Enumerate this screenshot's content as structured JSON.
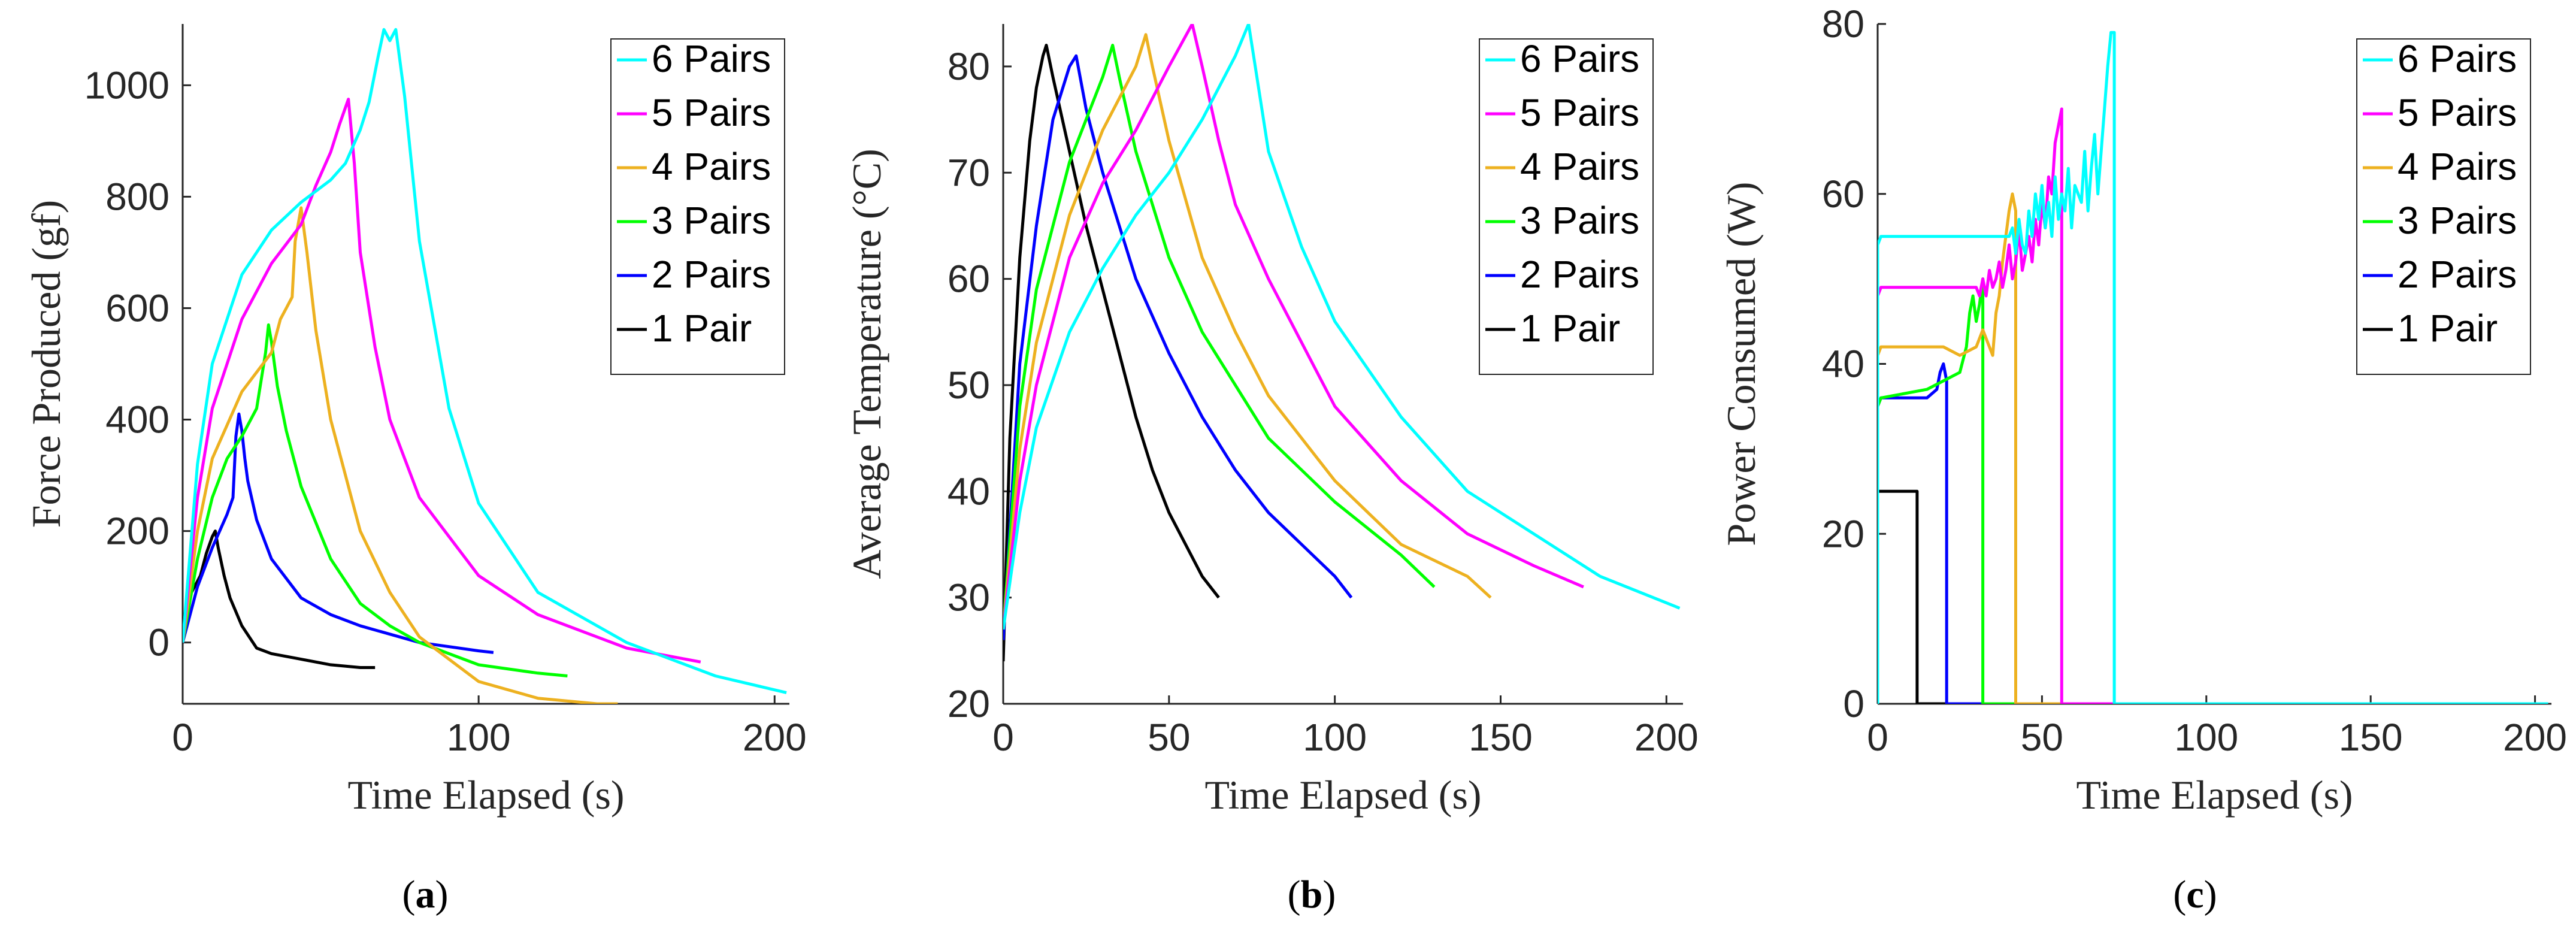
{
  "colors": {
    "6 Pairs": "#00FFFF",
    "5 Pairs": "#FF00FF",
    "4 Pairs": "#EDB120",
    "3 Pairs": "#00FF00",
    "2 Pairs": "#0000FF",
    "1 Pair": "#000000"
  },
  "legend": [
    "6 Pairs",
    "5 Pairs",
    "4 Pairs",
    "3 Pairs",
    "2 Pairs",
    "1 Pair"
  ],
  "chart_data": [
    {
      "type": "line",
      "id": "a",
      "caption_open": "(",
      "caption_letter": "a",
      "caption_close": ")",
      "xlabel": "Time Elapsed (s)",
      "ylabel": "Force Produced (gf)",
      "xlim": [
        0,
        205
      ],
      "ylim": [
        -110,
        1110
      ],
      "xticks": [
        "0",
        "100",
        "200"
      ],
      "xtick_values": [
        0,
        100,
        200
      ],
      "yticks": [
        "0",
        "200",
        "400",
        "600",
        "800",
        "1000"
      ],
      "ytick_values": [
        0,
        200,
        400,
        600,
        800,
        1000
      ],
      "legend_position": "top-right",
      "series": [
        {
          "name": "6 Pairs",
          "x": [
            0,
            5,
            10,
            20,
            30,
            40,
            50,
            55,
            60,
            63,
            66,
            68,
            70,
            72,
            75,
            80,
            90,
            100,
            120,
            150,
            180,
            204
          ],
          "y": [
            0,
            320,
            500,
            660,
            740,
            790,
            830,
            860,
            920,
            970,
            1050,
            1100,
            1080,
            1100,
            980,
            720,
            420,
            250,
            90,
            0,
            -60,
            -90
          ]
        },
        {
          "name": "5 Pairs",
          "x": [
            0,
            5,
            10,
            20,
            30,
            40,
            45,
            50,
            53,
            55,
            56,
            58,
            60,
            65,
            70,
            80,
            100,
            120,
            150,
            175
          ],
          "y": [
            0,
            260,
            420,
            580,
            680,
            750,
            820,
            880,
            930,
            960,
            975,
            860,
            700,
            530,
            400,
            260,
            120,
            50,
            -10,
            -35
          ]
        },
        {
          "name": "4 Pairs",
          "x": [
            0,
            5,
            10,
            20,
            30,
            33,
            35,
            37,
            38,
            40,
            42,
            45,
            50,
            60,
            70,
            80,
            100,
            120,
            140,
            147
          ],
          "y": [
            0,
            200,
            330,
            450,
            520,
            580,
            600,
            620,
            720,
            780,
            700,
            560,
            400,
            200,
            90,
            10,
            -70,
            -100,
            -110,
            -110
          ]
        },
        {
          "name": "3 Pairs",
          "x": [
            0,
            5,
            10,
            15,
            20,
            25,
            28,
            29,
            30,
            32,
            35,
            40,
            50,
            60,
            70,
            80,
            100,
            120,
            130
          ],
          "y": [
            0,
            150,
            260,
            330,
            370,
            420,
            520,
            570,
            540,
            460,
            380,
            280,
            150,
            70,
            30,
            0,
            -40,
            -55,
            -60
          ]
        },
        {
          "name": "2 Pairs",
          "x": [
            0,
            5,
            10,
            15,
            17,
            18,
            19,
            20,
            21,
            22,
            25,
            30,
            40,
            50,
            60,
            80,
            100,
            105
          ],
          "y": [
            0,
            100,
            170,
            230,
            260,
            370,
            410,
            380,
            330,
            290,
            220,
            150,
            80,
            50,
            30,
            0,
            -15,
            -18
          ]
        },
        {
          "name": "1 Pair",
          "x": [
            0,
            2,
            4,
            6,
            8,
            10,
            11,
            12,
            14,
            16,
            20,
            25,
            30,
            40,
            50,
            60,
            65
          ],
          "y": [
            30,
            80,
            100,
            120,
            160,
            190,
            200,
            170,
            120,
            80,
            30,
            -10,
            -20,
            -30,
            -40,
            -45,
            -45
          ]
        }
      ]
    },
    {
      "type": "line",
      "id": "b",
      "caption_open": "(",
      "caption_letter": "b",
      "caption_close": ")",
      "xlabel": "Time Elapsed (s)",
      "ylabel": "Average Temperature (°C)",
      "xlim": [
        0,
        205
      ],
      "ylim": [
        20,
        84
      ],
      "xticks": [
        "0",
        "50",
        "100",
        "150",
        "200"
      ],
      "xtick_values": [
        0,
        50,
        100,
        150,
        200
      ],
      "yticks": [
        "20",
        "30",
        "40",
        "50",
        "60",
        "70",
        "80"
      ],
      "ytick_values": [
        20,
        30,
        40,
        50,
        60,
        70,
        80
      ],
      "legend_position": "top-right",
      "series": [
        {
          "name": "6 Pairs",
          "x": [
            0,
            5,
            10,
            20,
            30,
            40,
            50,
            60,
            70,
            74,
            76,
            80,
            90,
            100,
            120,
            140,
            160,
            180,
            204
          ],
          "y": [
            27,
            38,
            46,
            55,
            61,
            66,
            70,
            75,
            81,
            84,
            80,
            72,
            63,
            56,
            47,
            40,
            36,
            32,
            29
          ]
        },
        {
          "name": "5 Pairs",
          "x": [
            0,
            5,
            10,
            20,
            30,
            40,
            50,
            57,
            60,
            65,
            70,
            80,
            100,
            120,
            140,
            160,
            175
          ],
          "y": [
            27,
            41,
            50,
            62,
            69,
            74,
            80,
            84,
            80,
            73,
            67,
            60,
            48,
            41,
            36,
            33,
            31
          ]
        },
        {
          "name": "4 Pairs",
          "x": [
            0,
            5,
            10,
            20,
            30,
            40,
            43,
            45,
            50,
            60,
            70,
            80,
            100,
            120,
            140,
            147
          ],
          "y": [
            27,
            44,
            54,
            66,
            74,
            80,
            83,
            80,
            73,
            62,
            55,
            49,
            41,
            35,
            32,
            30
          ]
        },
        {
          "name": "3 Pairs",
          "x": [
            0,
            5,
            10,
            20,
            30,
            33,
            35,
            40,
            50,
            60,
            70,
            80,
            100,
            120,
            130
          ],
          "y": [
            27,
            48,
            59,
            71,
            79,
            82,
            79,
            72,
            62,
            55,
            50,
            45,
            39,
            34,
            31
          ]
        },
        {
          "name": "2 Pairs",
          "x": [
            0,
            5,
            10,
            15,
            20,
            22,
            25,
            30,
            40,
            50,
            60,
            70,
            80,
            90,
            100,
            105
          ],
          "y": [
            26,
            52,
            65,
            75,
            80,
            81,
            76,
            70,
            60,
            53,
            47,
            42,
            38,
            35,
            32,
            30
          ]
        },
        {
          "name": "1 Pair",
          "x": [
            0,
            2,
            5,
            8,
            10,
            12,
            13,
            15,
            20,
            25,
            30,
            35,
            40,
            45,
            50,
            55,
            60,
            65
          ],
          "y": [
            24,
            45,
            62,
            73,
            78,
            81,
            82,
            79,
            72,
            65,
            59,
            53,
            47,
            42,
            38,
            35,
            32,
            30
          ]
        }
      ]
    },
    {
      "type": "line",
      "id": "c",
      "caption_open": "(",
      "caption_letter": "c",
      "caption_close": ")",
      "xlabel": "Time Elapsed (s)",
      "ylabel": "Power Consumed (W)",
      "xlim": [
        0,
        205
      ],
      "ylim": [
        0,
        80
      ],
      "xticks": [
        "0",
        "50",
        "100",
        "150",
        "200"
      ],
      "xtick_values": [
        0,
        50,
        100,
        150,
        200
      ],
      "yticks": [
        "0",
        "20",
        "40",
        "60",
        "80"
      ],
      "ytick_values": [
        0,
        20,
        40,
        60,
        80
      ],
      "legend_position": "top-right",
      "series": [
        {
          "name": "6 Pairs",
          "x": [
            0,
            0,
            1,
            40,
            41,
            42,
            43,
            44,
            45,
            46,
            47,
            48,
            49,
            50,
            51,
            52,
            53,
            54,
            55,
            56,
            57,
            58,
            59,
            60,
            61,
            62,
            63,
            64,
            65,
            66,
            67,
            68,
            69,
            70,
            71,
            72,
            72,
            100,
            150,
            204
          ],
          "y": [
            0,
            54,
            55,
            55,
            56,
            53,
            57,
            54,
            53,
            58,
            55,
            60,
            57,
            61,
            56,
            59,
            55,
            62,
            57,
            60,
            58,
            63,
            56,
            61,
            60,
            59,
            65,
            58,
            63,
            67,
            60,
            65,
            70,
            75,
            79,
            79,
            0,
            0,
            0,
            0
          ]
        },
        {
          "name": "5 Pairs",
          "x": [
            0,
            0,
            1,
            30,
            31,
            32,
            33,
            34,
            35,
            36,
            37,
            38,
            39,
            40,
            41,
            42,
            43,
            44,
            45,
            46,
            47,
            48,
            49,
            50,
            51,
            52,
            53,
            54,
            55,
            56,
            56,
            80,
            120,
            175
          ],
          "y": [
            0,
            48,
            49,
            49,
            48,
            50,
            48,
            51,
            49,
            50,
            52,
            49,
            51,
            54,
            50,
            52,
            56,
            51,
            53,
            55,
            52,
            57,
            54,
            59,
            56,
            62,
            60,
            66,
            68,
            70,
            0,
            0,
            0,
            0
          ]
        },
        {
          "name": "4 Pairs",
          "x": [
            0,
            0,
            1,
            20,
            25,
            30,
            32,
            34,
            35,
            36,
            37,
            38,
            39,
            40,
            41,
            42,
            42,
            80,
            147
          ],
          "y": [
            0,
            41,
            42,
            42,
            41,
            42,
            44,
            42,
            41,
            46,
            48,
            52,
            55,
            58,
            60,
            58,
            0,
            0,
            0
          ]
        },
        {
          "name": "3 Pairs",
          "x": [
            0,
            0,
            1,
            15,
            20,
            25,
            27,
            28,
            29,
            30,
            31,
            32,
            32,
            60,
            130
          ],
          "y": [
            0,
            35,
            36,
            37,
            38,
            39,
            42,
            46,
            48,
            45,
            47,
            50,
            0,
            0,
            0
          ]
        },
        {
          "name": "2 Pairs",
          "x": [
            0,
            0,
            1,
            15,
            18,
            19,
            20,
            21,
            21,
            60,
            105
          ],
          "y": [
            0,
            35,
            36,
            36,
            37,
            39,
            40,
            38,
            0,
            0,
            0
          ]
        },
        {
          "name": "1 Pair",
          "x": [
            0,
            0,
            1,
            10,
            11,
            12,
            12,
            40,
            65
          ],
          "y": [
            0,
            25,
            25,
            25,
            25,
            25,
            0,
            0,
            0
          ]
        }
      ]
    }
  ]
}
